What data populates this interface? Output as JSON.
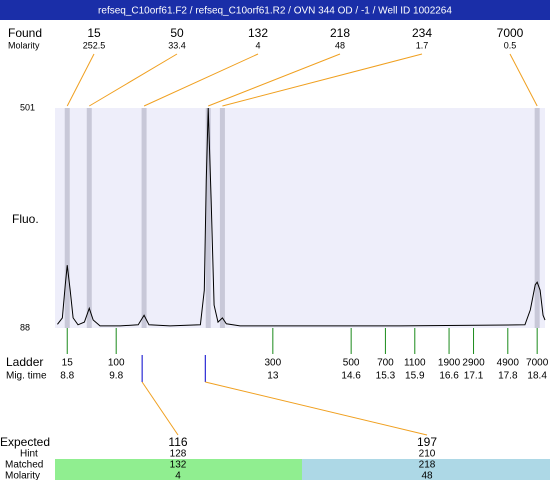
{
  "title": "refseq_C10orf61.F2 / refseq_C10orf61.R2 / OVN 344 OD  / -1 / Well ID 1002264",
  "found": {
    "label": "Found",
    "molarity_label": "Molarity",
    "peaks": [
      {
        "size": 15,
        "molarity": 252.5
      },
      {
        "size": 50,
        "molarity": 33.4
      },
      {
        "size": 132,
        "molarity": 4
      },
      {
        "size": 218,
        "molarity": 48
      },
      {
        "size": 234,
        "molarity": 1.7
      },
      {
        "size": 7000,
        "molarity": 0.5
      }
    ]
  },
  "chart_data": {
    "type": "line",
    "y_label": "Fluo.",
    "ylim": [
      88,
      501
    ],
    "yticks": [
      501,
      88
    ],
    "xlim": [
      8.55,
      18.56
    ],
    "x": [
      8.6,
      8.7,
      8.76,
      8.8,
      8.86,
      8.92,
      9.02,
      9.15,
      9.25,
      9.33,
      9.47,
      9.88,
      10.25,
      10.37,
      10.47,
      10.9,
      11.52,
      11.6,
      11.64,
      11.68,
      11.74,
      11.8,
      11.88,
      11.97,
      12.05,
      12.33,
      15.6,
      18.15,
      18.26,
      18.36,
      18.4,
      18.46,
      18.52,
      18.56
    ],
    "values": [
      95,
      107,
      169,
      206,
      159,
      107,
      94,
      99,
      125,
      103,
      92,
      92,
      94,
      112,
      94,
      92,
      94,
      159,
      365,
      501,
      328,
      131,
      99,
      107,
      96,
      92,
      92,
      94,
      122,
      169,
      174,
      159,
      112,
      103
    ],
    "color": "#000000",
    "bands": [
      8.8,
      9.25,
      10.37,
      11.68,
      11.97,
      18.4
    ],
    "band_color": "#c8c8d8",
    "plot_color": "#eeeefa"
  },
  "ladder": {
    "label": "Ladder",
    "time_label": "Mig. time",
    "sizes": [
      15,
      100,
      300,
      500,
      700,
      1100,
      1900,
      2900,
      4900,
      7000
    ],
    "times": [
      8.8,
      9.8,
      13,
      14.6,
      15.3,
      15.9,
      16.6,
      17.1,
      17.8,
      18.4
    ]
  },
  "expected": {
    "labels": {
      "expected": "Expected",
      "hint": "Hint",
      "matched": "Matched",
      "molarity": "Molarity"
    },
    "items": [
      {
        "expected": 116,
        "hint": 128,
        "matched": 132,
        "molarity": 4,
        "time": 10.33
      },
      {
        "expected": 197,
        "hint": 210,
        "matched": 218,
        "molarity": 48,
        "time": 11.62
      }
    ]
  }
}
